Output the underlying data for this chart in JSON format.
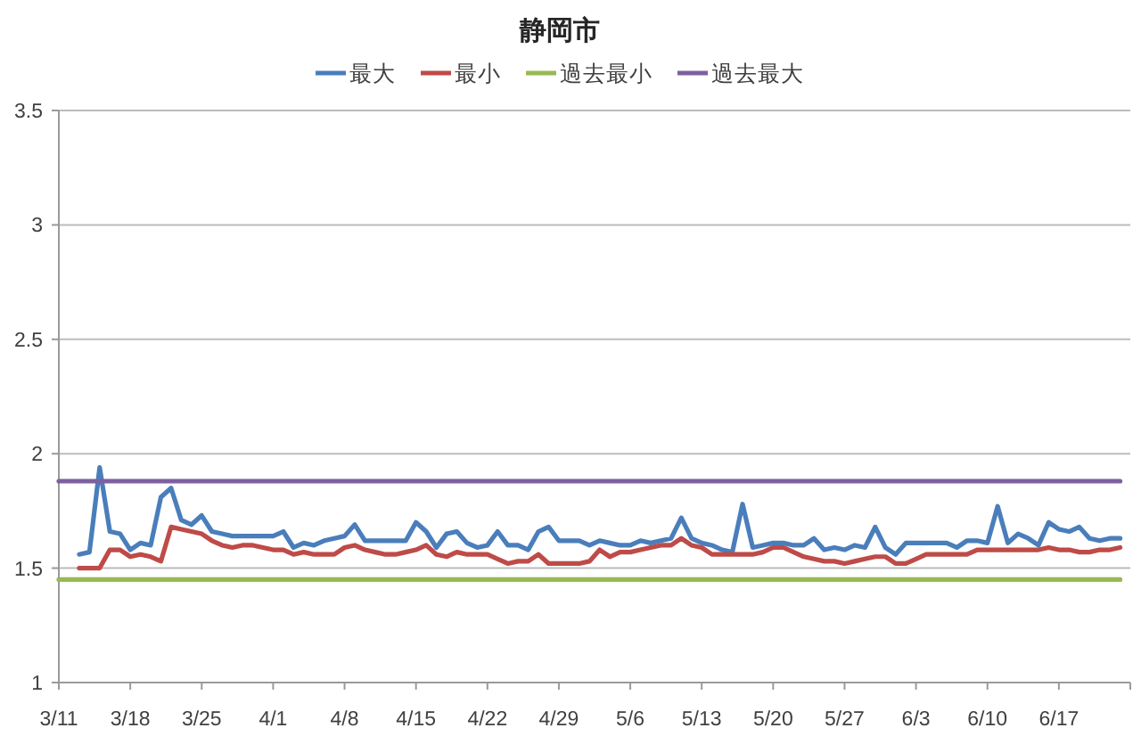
{
  "chart_data": {
    "type": "line",
    "title": "静岡市",
    "x": [
      "--03-13",
      "--03-14",
      "--03-15",
      "--03-16",
      "--03-17",
      "--03-18",
      "--03-19",
      "--03-20",
      "--03-21",
      "--03-22",
      "--03-23",
      "--03-24",
      "--03-25",
      "--03-26",
      "--03-27",
      "--03-28",
      "--03-29",
      "--03-30",
      "--03-31",
      "--04-01",
      "--04-02",
      "--04-03",
      "--04-04",
      "--04-05",
      "--04-06",
      "--04-07",
      "--04-08",
      "--04-09",
      "--04-10",
      "--04-11",
      "--04-12",
      "--04-13",
      "--04-14",
      "--04-15",
      "--04-16",
      "--04-17",
      "--04-18",
      "--04-19",
      "--04-20",
      "--04-21",
      "--04-22",
      "--04-23",
      "--04-24",
      "--04-25",
      "--04-26",
      "--04-27",
      "--04-28",
      "--04-29",
      "--04-30",
      "--05-01",
      "--05-02",
      "--05-03",
      "--05-04",
      "--05-05",
      "--05-06",
      "--05-07",
      "--05-08",
      "--05-09",
      "--05-10",
      "--05-11",
      "--05-12",
      "--05-13",
      "--05-14",
      "--05-15",
      "--05-16",
      "--05-17",
      "--05-18",
      "--05-19",
      "--05-20",
      "--05-21",
      "--05-22",
      "--05-23",
      "--05-24",
      "--05-25",
      "--05-26",
      "--05-27",
      "--05-28",
      "--05-29",
      "--05-30",
      "--05-31",
      "--06-01",
      "--06-02",
      "--06-03",
      "--06-04",
      "--06-05",
      "--06-06",
      "--06-07",
      "--06-08",
      "--06-09",
      "--06-10",
      "--06-11",
      "--06-12",
      "--06-13",
      "--06-14",
      "--06-15",
      "--06-16",
      "--06-17",
      "--06-18",
      "--06-19",
      "--06-20",
      "--06-21",
      "--06-22",
      "--06-23"
    ],
    "xlim": [
      "--03-11",
      "--06-24"
    ],
    "xticks": [
      {
        "value": "--03-11",
        "label": "3/11"
      },
      {
        "value": "--03-18",
        "label": "3/18"
      },
      {
        "value": "--03-25",
        "label": "3/25"
      },
      {
        "value": "--04-01",
        "label": "4/1"
      },
      {
        "value": "--04-08",
        "label": "4/8"
      },
      {
        "value": "--04-15",
        "label": "4/15"
      },
      {
        "value": "--04-22",
        "label": "4/22"
      },
      {
        "value": "--04-29",
        "label": "4/29"
      },
      {
        "value": "--05-06",
        "label": "5/6"
      },
      {
        "value": "--05-13",
        "label": "5/13"
      },
      {
        "value": "--05-20",
        "label": "5/20"
      },
      {
        "value": "--05-27",
        "label": "5/27"
      },
      {
        "value": "--06-03",
        "label": "6/3"
      },
      {
        "value": "--06-10",
        "label": "6/10"
      },
      {
        "value": "--06-17",
        "label": "6/17"
      },
      {
        "value": "--06-24",
        "label": null
      }
    ],
    "ylim": [
      1,
      3.5
    ],
    "yticks": [
      1,
      1.5,
      2,
      2.5,
      3,
      3.5
    ],
    "grid": "y",
    "legend": "top",
    "series": [
      {
        "name": "最大",
        "color": "#4a7ebb",
        "values": [
          1.56,
          1.57,
          1.94,
          1.66,
          1.65,
          1.58,
          1.61,
          1.6,
          1.81,
          1.85,
          1.71,
          1.69,
          1.73,
          1.66,
          1.65,
          1.64,
          1.64,
          1.64,
          1.64,
          1.64,
          1.66,
          1.59,
          1.61,
          1.6,
          1.62,
          1.63,
          1.64,
          1.69,
          1.62,
          1.62,
          1.62,
          1.62,
          1.62,
          1.7,
          1.66,
          1.59,
          1.65,
          1.66,
          1.61,
          1.59,
          1.6,
          1.66,
          1.6,
          1.6,
          1.58,
          1.66,
          1.68,
          1.62,
          1.62,
          1.62,
          1.6,
          1.62,
          1.61,
          1.6,
          1.6,
          1.62,
          1.61,
          1.62,
          1.63,
          1.72,
          1.63,
          1.61,
          1.6,
          1.58,
          1.57,
          1.78,
          1.59,
          1.6,
          1.61,
          1.61,
          1.6,
          1.6,
          1.63,
          1.58,
          1.59,
          1.58,
          1.6,
          1.59,
          1.68,
          1.59,
          1.56,
          1.61,
          1.61,
          1.61,
          1.61,
          1.61,
          1.59,
          1.62,
          1.62,
          1.61,
          1.77,
          1.61,
          1.65,
          1.63,
          1.6,
          1.7,
          1.67,
          1.66,
          1.68,
          1.63,
          1.62,
          1.63,
          1.63
        ]
      },
      {
        "name": "最小",
        "color": "#be4b48",
        "values": [
          1.5,
          1.5,
          1.5,
          1.58,
          1.58,
          1.55,
          1.56,
          1.55,
          1.53,
          1.68,
          1.67,
          1.66,
          1.65,
          1.62,
          1.6,
          1.59,
          1.6,
          1.6,
          1.59,
          1.58,
          1.58,
          1.56,
          1.57,
          1.56,
          1.56,
          1.56,
          1.59,
          1.6,
          1.58,
          1.57,
          1.56,
          1.56,
          1.57,
          1.58,
          1.6,
          1.56,
          1.55,
          1.57,
          1.56,
          1.56,
          1.56,
          1.54,
          1.52,
          1.53,
          1.53,
          1.56,
          1.52,
          1.52,
          1.52,
          1.52,
          1.53,
          1.58,
          1.55,
          1.57,
          1.57,
          1.58,
          1.59,
          1.6,
          1.6,
          1.63,
          1.6,
          1.59,
          1.56,
          1.56,
          1.56,
          1.56,
          1.56,
          1.57,
          1.59,
          1.59,
          1.57,
          1.55,
          1.54,
          1.53,
          1.53,
          1.52,
          1.53,
          1.54,
          1.55,
          1.55,
          1.52,
          1.52,
          1.54,
          1.56,
          1.56,
          1.56,
          1.56,
          1.56,
          1.58,
          1.58,
          1.58,
          1.58,
          1.58,
          1.58,
          1.58,
          1.59,
          1.58,
          1.58,
          1.57,
          1.57,
          1.58,
          1.58,
          1.59
        ]
      },
      {
        "name": "過去最小",
        "color": "#98b954",
        "x": [
          "--03-11",
          "--06-23"
        ],
        "values": [
          1.45,
          1.45
        ]
      },
      {
        "name": "過去最大",
        "color": "#7d60a0",
        "x": [
          "--03-11",
          "--06-23"
        ],
        "values": [
          1.88,
          1.88
        ]
      }
    ]
  }
}
